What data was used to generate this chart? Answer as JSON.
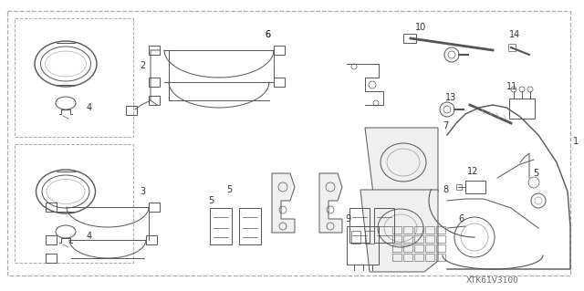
{
  "background_color": "#f5f5f5",
  "diagram_code": "XTK61V3100",
  "figsize": [
    6.4,
    3.19
  ],
  "dpi": 100,
  "gray": "#555555",
  "light_gray": "#999999",
  "border_dash_color": "#888888"
}
